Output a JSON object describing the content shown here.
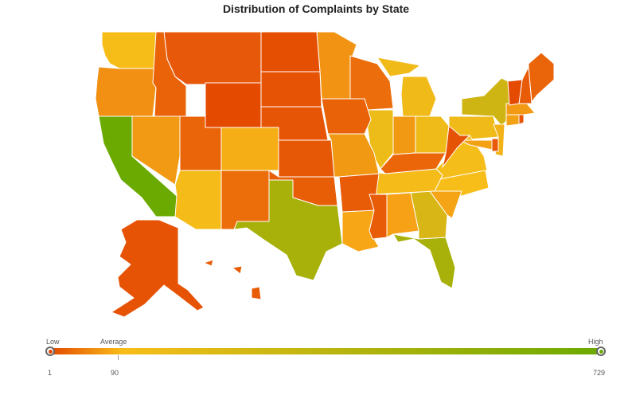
{
  "title": "Distribution of Complaints by State",
  "legend": {
    "low_label": "Low",
    "average_label": "Average",
    "high_label": "High",
    "min_value": "1",
    "average_value": "90",
    "max_value": "729",
    "colors": [
      "#e44a00",
      "#f8bd19",
      "#6baa01"
    ]
  },
  "chart_data": {
    "type": "map",
    "title": "Distribution of Complaints by State",
    "color_scale": {
      "min": 1,
      "average": 90,
      "max": 729,
      "colors": {
        "low": "#e44a00",
        "average": "#f8bd19",
        "high": "#6baa01"
      }
    },
    "states": [
      {
        "id": "CA",
        "color": "#6baa01"
      },
      {
        "id": "TX",
        "color": "#a8b10a"
      },
      {
        "id": "FL",
        "color": "#a8b10a"
      },
      {
        "id": "NY",
        "color": "#cfb514"
      },
      {
        "id": "GA",
        "color": "#d8b615"
      },
      {
        "id": "IL",
        "color": "#eebc18"
      },
      {
        "id": "WA",
        "color": "#f6bd19"
      },
      {
        "id": "AZ",
        "color": "#f4bb19"
      },
      {
        "id": "PA",
        "color": "#f0bb19"
      },
      {
        "id": "OH",
        "color": "#efbb19"
      },
      {
        "id": "MI",
        "color": "#f0bb19"
      },
      {
        "id": "VA",
        "color": "#f4bd19"
      },
      {
        "id": "NC",
        "color": "#f7bd19"
      },
      {
        "id": "TN",
        "color": "#f5bb19"
      },
      {
        "id": "CO",
        "color": "#f6ae16"
      },
      {
        "id": "NJ",
        "color": "#f3b218"
      },
      {
        "id": "OR",
        "color": "#f19013"
      },
      {
        "id": "NV",
        "color": "#f29a14"
      },
      {
        "id": "MN",
        "color": "#f29313"
      },
      {
        "id": "MO",
        "color": "#f29913"
      },
      {
        "id": "IN",
        "color": "#f29914"
      },
      {
        "id": "AL",
        "color": "#f6a116"
      },
      {
        "id": "LA",
        "color": "#f7a616"
      },
      {
        "id": "SC",
        "color": "#f4a415"
      },
      {
        "id": "MD",
        "color": "#f4a215"
      },
      {
        "id": "CT",
        "color": "#f4a215"
      },
      {
        "id": "MA",
        "color": "#f39a14"
      },
      {
        "id": "WI",
        "color": "#ec6d0b"
      },
      {
        "id": "MT",
        "color": "#e7580a"
      },
      {
        "id": "ID",
        "color": "#ea6309"
      },
      {
        "id": "UT",
        "color": "#ea6509"
      },
      {
        "id": "NM",
        "color": "#ec6e0b"
      },
      {
        "id": "WY",
        "color": "#e44a00"
      },
      {
        "id": "ND",
        "color": "#e54f02"
      },
      {
        "id": "SD",
        "color": "#e65304"
      },
      {
        "id": "NE",
        "color": "#e65406"
      },
      {
        "id": "KS",
        "color": "#e65706"
      },
      {
        "id": "OK",
        "color": "#e85e07"
      },
      {
        "id": "IA",
        "color": "#e96208"
      },
      {
        "id": "AR",
        "color": "#e85c07"
      },
      {
        "id": "MS",
        "color": "#e85c07"
      },
      {
        "id": "KY",
        "color": "#ea6609"
      },
      {
        "id": "WV",
        "color": "#e65305"
      },
      {
        "id": "ME",
        "color": "#ea6409"
      },
      {
        "id": "NH",
        "color": "#e85b07"
      },
      {
        "id": "VT",
        "color": "#e44a00"
      },
      {
        "id": "DE",
        "color": "#e85a07"
      },
      {
        "id": "AK",
        "color": "#e65305"
      },
      {
        "id": "HI",
        "color": "#e85c07"
      },
      {
        "id": "RI",
        "color": "#e65305"
      }
    ]
  }
}
